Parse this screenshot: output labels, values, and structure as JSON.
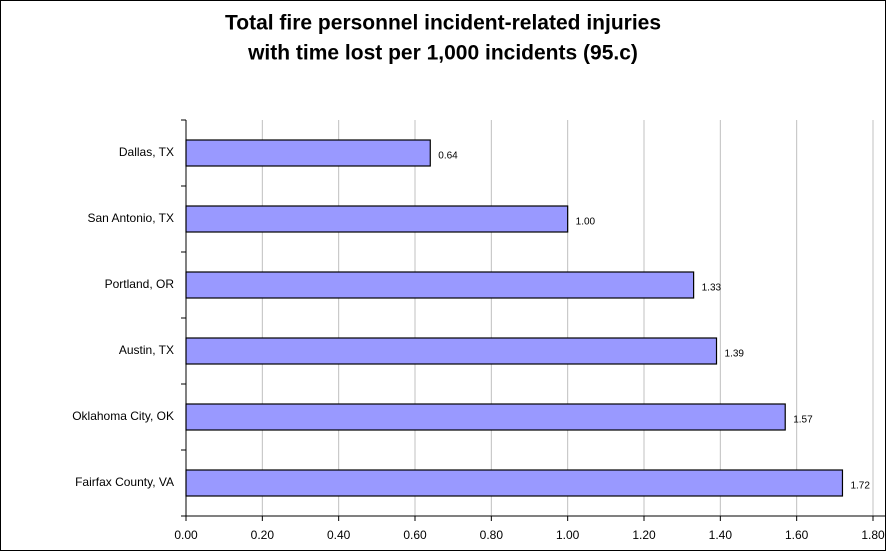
{
  "chart_data": {
    "type": "barh",
    "title": [
      "Total fire personnel incident-related injuries",
      "with time lost per 1,000 incidents (95.c)"
    ],
    "categories": [
      "Dallas, TX",
      "San Antonio, TX",
      "Portland, OR",
      "Austin, TX",
      "Oklahoma City, OK",
      "Fairfax County, VA"
    ],
    "values": [
      0.64,
      1.0,
      1.33,
      1.39,
      1.57,
      1.72
    ],
    "value_labels": [
      "0.64",
      "1.00",
      "1.33",
      "1.39",
      "1.57",
      "1.72"
    ],
    "color": "#9999ff",
    "xlim": [
      0,
      1.8
    ],
    "xticks": [
      {
        "value": 0,
        "label": "0.00"
      },
      {
        "value": 0.2,
        "label": "0.20"
      },
      {
        "value": 0.4,
        "label": "0.40"
      },
      {
        "value": 0.6,
        "label": "0.60"
      },
      {
        "value": 0.8,
        "label": "0.80"
      },
      {
        "value": 1.0,
        "label": "1.00"
      },
      {
        "value": 1.2,
        "label": "1.20"
      },
      {
        "value": 1.4,
        "label": "1.40"
      },
      {
        "value": 1.6,
        "label": "1.60"
      },
      {
        "value": 1.8,
        "label": "1.80"
      }
    ],
    "grid": true
  }
}
